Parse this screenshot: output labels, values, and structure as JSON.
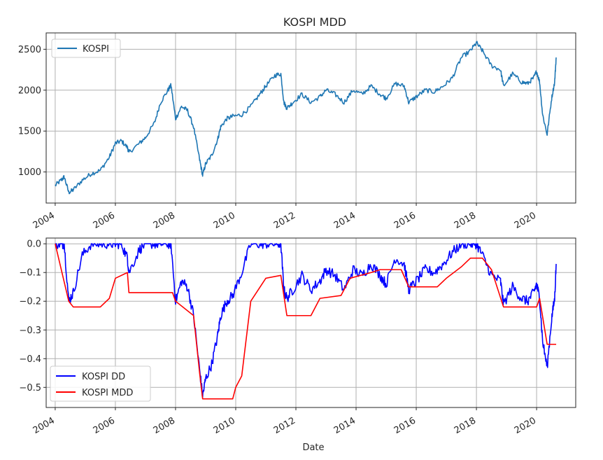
{
  "title": "KOSPI MDD",
  "chart_data": [
    {
      "type": "line",
      "title": "KOSPI MDD",
      "xlabel": "",
      "ylabel": "",
      "xlim": [
        2003.7,
        2021.3
      ],
      "ylim": [
        620,
        2700
      ],
      "xticks": [
        2004,
        2006,
        2008,
        2010,
        2012,
        2014,
        2016,
        2018,
        2020
      ],
      "xtick_labels": [
        "2004",
        "2006",
        "2008",
        "2010",
        "2012",
        "2014",
        "2016",
        "2018",
        "2020"
      ],
      "yticks": [
        1000,
        1500,
        2000,
        2500
      ],
      "ytick_labels": [
        "1000",
        "1500",
        "2000",
        "2500"
      ],
      "grid": true,
      "legend": "top-left",
      "series": [
        {
          "name": "KOSPI",
          "color": "#1f77b4",
          "x": [
            2004.0,
            2004.2,
            2004.3,
            2004.45,
            2004.6,
            2004.9,
            2005.2,
            2005.5,
            2005.8,
            2006.0,
            2006.2,
            2006.4,
            2006.45,
            2006.8,
            2007.0,
            2007.3,
            2007.5,
            2007.75,
            2007.85,
            2008.0,
            2008.2,
            2008.4,
            2008.6,
            2008.8,
            2008.9,
            2009.0,
            2009.2,
            2009.4,
            2009.5,
            2009.7,
            2009.9,
            2010.2,
            2010.5,
            2010.8,
            2011.0,
            2011.3,
            2011.5,
            2011.6,
            2011.7,
            2011.9,
            2012.2,
            2012.5,
            2012.8,
            2013.0,
            2013.3,
            2013.6,
            2013.9,
            2014.2,
            2014.5,
            2014.8,
            2015.0,
            2015.3,
            2015.6,
            2015.75,
            2016.0,
            2016.3,
            2016.6,
            2016.9,
            2017.2,
            2017.5,
            2017.8,
            2018.0,
            2018.2,
            2018.5,
            2018.8,
            2018.9,
            2019.2,
            2019.5,
            2019.7,
            2019.9,
            2020.0,
            2020.1,
            2020.2,
            2020.35,
            2020.5,
            2020.6,
            2020.65
          ],
          "y": [
            835,
            900,
            940,
            750,
            780,
            900,
            980,
            1020,
            1180,
            1350,
            1380,
            1300,
            1240,
            1350,
            1420,
            1600,
            1850,
            2000,
            2060,
            1650,
            1800,
            1750,
            1550,
            1150,
            960,
            1100,
            1200,
            1400,
            1550,
            1650,
            1680,
            1700,
            1800,
            1950,
            2050,
            2180,
            2200,
            1850,
            1780,
            1850,
            1950,
            1850,
            1920,
            2000,
            1950,
            1850,
            2000,
            1950,
            2050,
            1950,
            1900,
            2080,
            2050,
            1850,
            1920,
            2000,
            1980,
            2050,
            2150,
            2400,
            2480,
            2580,
            2480,
            2300,
            2250,
            2050,
            2200,
            2100,
            2080,
            2150,
            2230,
            2100,
            1700,
            1460,
            1900,
            2100,
            2400
          ]
        }
      ]
    },
    {
      "type": "line",
      "title": "",
      "xlabel": "Date",
      "ylabel": "",
      "xlim": [
        2003.7,
        2021.3
      ],
      "ylim": [
        -0.57,
        0.02
      ],
      "xticks": [
        2004,
        2006,
        2008,
        2010,
        2012,
        2014,
        2016,
        2018,
        2020
      ],
      "xtick_labels": [
        "2004",
        "2006",
        "2008",
        "2010",
        "2012",
        "2014",
        "2016",
        "2018",
        "2020"
      ],
      "yticks": [
        0.0,
        -0.1,
        -0.2,
        -0.3,
        -0.4,
        -0.5
      ],
      "ytick_labels": [
        "0.0",
        "−0.1",
        "−0.2",
        "−0.3",
        "−0.4",
        "−0.5"
      ],
      "grid": true,
      "legend": "bottom-left",
      "series": [
        {
          "name": "KOSPI DD",
          "color": "#0000ff",
          "x": [
            2004.0,
            2004.2,
            2004.3,
            2004.45,
            2004.6,
            2004.9,
            2005.2,
            2005.5,
            2005.8,
            2006.0,
            2006.2,
            2006.4,
            2006.45,
            2006.8,
            2007.0,
            2007.3,
            2007.5,
            2007.75,
            2007.85,
            2008.0,
            2008.2,
            2008.4,
            2008.6,
            2008.8,
            2008.9,
            2009.0,
            2009.2,
            2009.4,
            2009.5,
            2009.7,
            2009.9,
            2010.2,
            2010.5,
            2010.8,
            2011.0,
            2011.3,
            2011.5,
            2011.6,
            2011.7,
            2011.9,
            2012.2,
            2012.5,
            2012.8,
            2013.0,
            2013.3,
            2013.6,
            2013.9,
            2014.2,
            2014.5,
            2014.8,
            2015.0,
            2015.3,
            2015.6,
            2015.75,
            2016.0,
            2016.3,
            2016.6,
            2016.9,
            2017.2,
            2017.5,
            2017.8,
            2018.0,
            2018.2,
            2018.5,
            2018.8,
            2018.9,
            2019.2,
            2019.5,
            2019.7,
            2019.9,
            2020.0,
            2020.1,
            2020.2,
            2020.35,
            2020.5,
            2020.6,
            2020.65
          ],
          "y": [
            0.0,
            0.0,
            0.0,
            -0.2,
            -0.17,
            -0.04,
            0.0,
            0.0,
            0.0,
            0.0,
            0.0,
            -0.05,
            -0.1,
            -0.02,
            0.0,
            0.0,
            0.0,
            0.0,
            0.0,
            -0.2,
            -0.13,
            -0.15,
            -0.25,
            -0.44,
            -0.53,
            -0.47,
            -0.42,
            -0.32,
            -0.25,
            -0.2,
            -0.18,
            -0.1,
            0.0,
            0.0,
            0.0,
            0.0,
            0.0,
            -0.16,
            -0.19,
            -0.16,
            -0.11,
            -0.16,
            -0.13,
            -0.09,
            -0.11,
            -0.16,
            -0.09,
            -0.11,
            -0.07,
            -0.11,
            -0.14,
            -0.05,
            -0.07,
            -0.16,
            -0.13,
            -0.09,
            -0.1,
            -0.07,
            -0.03,
            0.0,
            0.0,
            0.0,
            -0.04,
            -0.11,
            -0.13,
            -0.21,
            -0.15,
            -0.19,
            -0.2,
            -0.17,
            -0.14,
            -0.19,
            -0.34,
            -0.43,
            -0.26,
            -0.19,
            -0.07
          ]
        },
        {
          "name": "KOSPI MDD",
          "color": "#ff0000",
          "x": [
            2004.0,
            2004.45,
            2004.6,
            2005.5,
            2005.8,
            2006.0,
            2006.4,
            2006.45,
            2007.9,
            2008.0,
            2008.6,
            2008.8,
            2008.9,
            2009.9,
            2010.0,
            2010.2,
            2010.5,
            2011.0,
            2011.5,
            2011.7,
            2012.5,
            2012.8,
            2013.5,
            2013.8,
            2014.5,
            2014.8,
            2015.5,
            2015.75,
            2016.7,
            2017.0,
            2017.5,
            2017.8,
            2018.2,
            2018.5,
            2018.9,
            2020.0,
            2020.1,
            2020.35,
            2020.65
          ],
          "y": [
            0.0,
            -0.2,
            -0.22,
            -0.22,
            -0.19,
            -0.12,
            -0.1,
            -0.17,
            -0.17,
            -0.2,
            -0.25,
            -0.45,
            -0.54,
            -0.54,
            -0.5,
            -0.46,
            -0.2,
            -0.12,
            -0.11,
            -0.25,
            -0.25,
            -0.19,
            -0.18,
            -0.12,
            -0.1,
            -0.09,
            -0.09,
            -0.15,
            -0.15,
            -0.12,
            -0.08,
            -0.05,
            -0.05,
            -0.09,
            -0.22,
            -0.22,
            -0.19,
            -0.35,
            -0.35
          ]
        }
      ]
    }
  ]
}
